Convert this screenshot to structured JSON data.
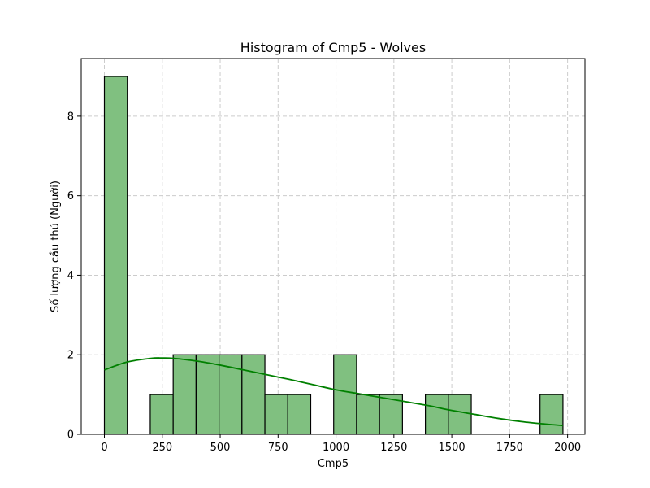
{
  "chart_data": {
    "type": "bar",
    "title": "Histogram of Cmp5 - Wolves",
    "xlabel": "Cmp5",
    "ylabel": "Số lượng cầu thủ (Người)",
    "xlim": [
      -100,
      2075
    ],
    "ylim": [
      0,
      9.45
    ],
    "x_ticks": [
      0,
      250,
      500,
      750,
      1000,
      1250,
      1500,
      1750,
      2000
    ],
    "y_ticks": [
      0,
      2,
      4,
      6,
      8
    ],
    "grid": true,
    "bins": [
      {
        "start": 0,
        "end": 99,
        "count": 9
      },
      {
        "start": 198,
        "end": 297,
        "count": 1
      },
      {
        "start": 297,
        "end": 396,
        "count": 2
      },
      {
        "start": 396,
        "end": 495,
        "count": 2
      },
      {
        "start": 495,
        "end": 594,
        "count": 2
      },
      {
        "start": 594,
        "end": 693,
        "count": 2
      },
      {
        "start": 693,
        "end": 792,
        "count": 1
      },
      {
        "start": 792,
        "end": 891,
        "count": 1
      },
      {
        "start": 990,
        "end": 1089,
        "count": 2
      },
      {
        "start": 1089,
        "end": 1188,
        "count": 1
      },
      {
        "start": 1188,
        "end": 1287,
        "count": 1
      },
      {
        "start": 1386,
        "end": 1485,
        "count": 1
      },
      {
        "start": 1485,
        "end": 1584,
        "count": 1
      },
      {
        "start": 1881,
        "end": 1980,
        "count": 1
      }
    ],
    "kde": {
      "x": [
        0,
        100,
        200,
        250,
        300,
        400,
        500,
        600,
        700,
        800,
        900,
        1000,
        1100,
        1200,
        1300,
        1400,
        1500,
        1600,
        1700,
        1800,
        1900,
        1980
      ],
      "y": [
        1.62,
        1.82,
        1.91,
        1.92,
        1.91,
        1.84,
        1.74,
        1.62,
        1.5,
        1.38,
        1.25,
        1.12,
        1.02,
        0.92,
        0.82,
        0.72,
        0.6,
        0.5,
        0.4,
        0.32,
        0.26,
        0.22
      ]
    },
    "colors": {
      "bar_fill": "#80c080",
      "bar_edge": "#000000",
      "kde_line": "#008000",
      "grid": "#cccccc"
    }
  }
}
